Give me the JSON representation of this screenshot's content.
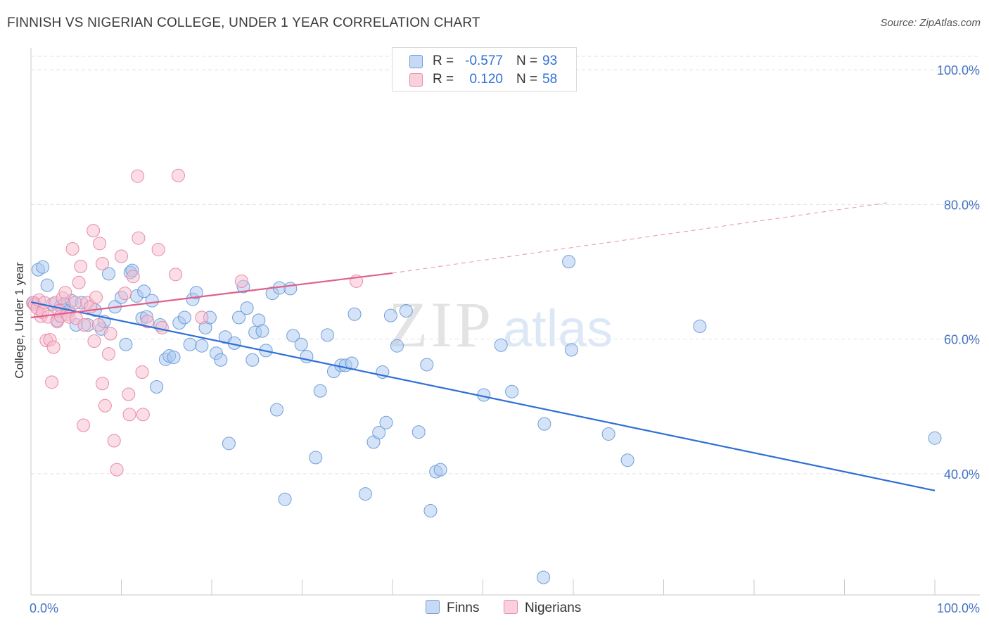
{
  "header": {
    "title": "FINNISH VS NIGERIAN COLLEGE, UNDER 1 YEAR CORRELATION CHART",
    "source": "Source: ZipAtlas.com"
  },
  "watermark": {
    "zip": "ZIP",
    "atlas": "atlas"
  },
  "legend": {
    "r_label": "R =",
    "n_label": "N =",
    "rows": [
      {
        "series": "Finns",
        "r": "-0.577",
        "n": "93"
      },
      {
        "series": "Nigerians",
        "r": "0.120",
        "n": "58"
      }
    ]
  },
  "colors": {
    "finns_fill": "#a9c8f0",
    "finns_stroke": "#6f9fd8",
    "finns_line": "#2f6fd6",
    "nigerians_fill": "#f7bccd",
    "nigerians_stroke": "#e88aa8",
    "nigerians_line": "#e0608a",
    "tick_text": "#4472c4",
    "grid": "#e2e2e2"
  },
  "chart_data": {
    "type": "scatter",
    "title": "FINNISH VS NIGERIAN COLLEGE, UNDER 1 YEAR CORRELATION CHART",
    "xlabel": "",
    "ylabel": "College, Under 1 year",
    "xlim": [
      0,
      100
    ],
    "ylim": [
      22,
      102
    ],
    "x_tick_labels": [
      {
        "value": 0,
        "label": "0.0%"
      },
      {
        "value": 100,
        "label": "100.0%"
      }
    ],
    "y_tick_labels": [
      {
        "value": 100,
        "label": "100.0%"
      },
      {
        "value": 80,
        "label": "80.0%"
      },
      {
        "value": 60,
        "label": "60.0%"
      },
      {
        "value": 40,
        "label": "40.0%"
      }
    ],
    "grid": true,
    "series": [
      {
        "name": "Finns",
        "r": -0.577,
        "n": 93,
        "trend": {
          "x": [
            0,
            100
          ],
          "y": [
            65.5,
            37.5
          ],
          "style": "solid"
        },
        "points": [
          [
            0.3,
            65.4
          ],
          [
            0.8,
            70.3
          ],
          [
            1.3,
            70.7
          ],
          [
            1.8,
            68.0
          ],
          [
            2.4,
            65.2
          ],
          [
            2.9,
            62.8
          ],
          [
            3.3,
            64.9
          ],
          [
            3.7,
            65.2
          ],
          [
            4.2,
            64.2
          ],
          [
            4.5,
            65.7
          ],
          [
            5.0,
            62.1
          ],
          [
            5.6,
            65.4
          ],
          [
            6.3,
            62.1
          ],
          [
            7.1,
            64.3
          ],
          [
            7.8,
            61.5
          ],
          [
            8.1,
            62.6
          ],
          [
            8.6,
            69.7
          ],
          [
            9.3,
            64.8
          ],
          [
            10.0,
            66.2
          ],
          [
            10.5,
            59.2
          ],
          [
            11.0,
            69.9
          ],
          [
            11.2,
            70.2
          ],
          [
            11.7,
            66.4
          ],
          [
            12.3,
            63.1
          ],
          [
            12.5,
            67.1
          ],
          [
            12.8,
            63.3
          ],
          [
            13.4,
            65.7
          ],
          [
            13.9,
            52.9
          ],
          [
            14.3,
            62.1
          ],
          [
            14.9,
            57.0
          ],
          [
            15.3,
            57.5
          ],
          [
            15.8,
            57.3
          ],
          [
            16.4,
            62.4
          ],
          [
            17.0,
            63.2
          ],
          [
            17.6,
            59.2
          ],
          [
            17.9,
            65.9
          ],
          [
            18.3,
            66.9
          ],
          [
            18.9,
            59.0
          ],
          [
            19.3,
            61.7
          ],
          [
            19.8,
            63.2
          ],
          [
            20.5,
            57.9
          ],
          [
            21.0,
            56.9
          ],
          [
            21.5,
            60.3
          ],
          [
            21.9,
            44.5
          ],
          [
            22.5,
            59.4
          ],
          [
            23.0,
            63.2
          ],
          [
            23.5,
            67.8
          ],
          [
            23.9,
            64.6
          ],
          [
            24.5,
            56.9
          ],
          [
            24.8,
            61.0
          ],
          [
            25.2,
            62.8
          ],
          [
            25.6,
            61.2
          ],
          [
            26.0,
            58.3
          ],
          [
            26.7,
            66.8
          ],
          [
            27.2,
            49.5
          ],
          [
            27.5,
            67.6
          ],
          [
            28.1,
            36.2
          ],
          [
            28.7,
            67.5
          ],
          [
            29.0,
            60.5
          ],
          [
            29.9,
            59.2
          ],
          [
            30.5,
            57.4
          ],
          [
            31.5,
            42.4
          ],
          [
            32.0,
            52.3
          ],
          [
            32.8,
            60.6
          ],
          [
            33.5,
            55.2
          ],
          [
            34.3,
            56.1
          ],
          [
            34.8,
            56.1
          ],
          [
            35.5,
            56.4
          ],
          [
            35.8,
            63.7
          ],
          [
            37.0,
            37.0
          ],
          [
            37.9,
            44.7
          ],
          [
            38.5,
            46.1
          ],
          [
            38.9,
            55.1
          ],
          [
            39.3,
            47.6
          ],
          [
            39.8,
            63.5
          ],
          [
            40.5,
            59.0
          ],
          [
            41.5,
            64.2
          ],
          [
            42.9,
            46.2
          ],
          [
            43.8,
            56.2
          ],
          [
            44.2,
            34.5
          ],
          [
            44.8,
            40.3
          ],
          [
            45.3,
            40.6
          ],
          [
            50.1,
            51.7
          ],
          [
            52.0,
            59.1
          ],
          [
            53.2,
            52.2
          ],
          [
            56.8,
            47.4
          ],
          [
            56.7,
            24.6
          ],
          [
            59.5,
            71.5
          ],
          [
            59.8,
            58.4
          ],
          [
            63.9,
            45.9
          ],
          [
            66.0,
            42.0
          ],
          [
            74.0,
            61.9
          ],
          [
            100.0,
            45.3
          ]
        ]
      },
      {
        "name": "Nigerians",
        "r": 0.12,
        "n": 58,
        "trend": {
          "x": [
            0,
            40
          ],
          "y": [
            63.2,
            69.8
          ],
          "style": "solid",
          "dashed_extension": {
            "x": [
              40,
              95
            ],
            "y": [
              69.8,
              80.3
            ]
          }
        },
        "points": [
          [
            0.2,
            65.4
          ],
          [
            0.4,
            65.1
          ],
          [
            0.7,
            64.6
          ],
          [
            0.9,
            65.8
          ],
          [
            1.1,
            63.4
          ],
          [
            1.3,
            64.0
          ],
          [
            1.5,
            65.4
          ],
          [
            1.7,
            59.8
          ],
          [
            1.9,
            63.3
          ],
          [
            2.1,
            59.9
          ],
          [
            2.3,
            53.6
          ],
          [
            2.5,
            58.8
          ],
          [
            2.7,
            65.4
          ],
          [
            2.9,
            62.6
          ],
          [
            3.1,
            64.2
          ],
          [
            3.3,
            63.4
          ],
          [
            3.5,
            66.1
          ],
          [
            3.8,
            66.9
          ],
          [
            4.0,
            63.7
          ],
          [
            4.2,
            63.3
          ],
          [
            4.6,
            73.4
          ],
          [
            4.9,
            65.4
          ],
          [
            5.0,
            63.1
          ],
          [
            5.3,
            68.4
          ],
          [
            5.5,
            70.8
          ],
          [
            5.8,
            47.2
          ],
          [
            5.9,
            62.1
          ],
          [
            6.2,
            65.4
          ],
          [
            6.6,
            64.8
          ],
          [
            6.9,
            76.1
          ],
          [
            7.0,
            59.7
          ],
          [
            7.2,
            66.2
          ],
          [
            7.5,
            62.1
          ],
          [
            7.6,
            74.2
          ],
          [
            7.9,
            53.4
          ],
          [
            7.9,
            71.2
          ],
          [
            8.2,
            50.1
          ],
          [
            8.6,
            57.8
          ],
          [
            8.8,
            60.8
          ],
          [
            9.2,
            44.9
          ],
          [
            9.5,
            40.6
          ],
          [
            10.0,
            72.3
          ],
          [
            10.4,
            66.8
          ],
          [
            10.8,
            51.8
          ],
          [
            10.9,
            48.8
          ],
          [
            11.3,
            69.3
          ],
          [
            11.8,
            84.2
          ],
          [
            11.9,
            75.0
          ],
          [
            12.4,
            48.8
          ],
          [
            12.3,
            55.1
          ],
          [
            12.9,
            62.6
          ],
          [
            14.1,
            73.3
          ],
          [
            14.5,
            61.7
          ],
          [
            16.0,
            69.6
          ],
          [
            16.3,
            84.3
          ],
          [
            18.9,
            63.2
          ],
          [
            23.3,
            68.6
          ],
          [
            36.0,
            68.6
          ]
        ]
      }
    ]
  }
}
